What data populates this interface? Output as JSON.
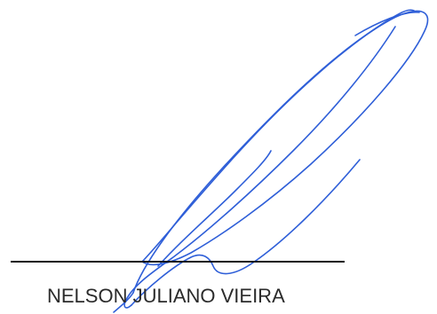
{
  "signature": {
    "signer_name": "NELSON JULIANO VIEIRA",
    "ink_color": "#2f5fd8",
    "line_color": "#111111",
    "text_color": "#2b2b2b"
  }
}
